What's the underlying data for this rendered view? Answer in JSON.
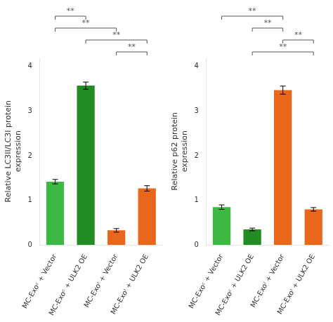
{
  "chart_data": [
    {
      "type": "bar",
      "ylabel": "Relative LC3II/LC3I protein\nexpression",
      "categories": [
        "MC-Exoᶜ + Vector",
        "MC-Exoᶜ + ULK2 OE",
        "MC-Exoᴵ + Vector",
        "MC-Exoᴵ + ULK2 OE"
      ],
      "values": [
        1.42,
        3.57,
        0.33,
        1.27
      ],
      "errors": [
        0.05,
        0.08,
        0.04,
        0.06
      ],
      "colors": [
        "#3cb843",
        "#228b22",
        "#e8671a",
        "#e8671a"
      ],
      "ylim": [
        0,
        4.2
      ],
      "yticks": [
        0,
        1,
        2,
        3,
        4
      ],
      "grid": false,
      "annotations": [
        {
          "text": "**",
          "from": "MC-Exoᶜ + Vector",
          "to": "MC-Exoᶜ + ULK2 OE"
        },
        {
          "text": "**",
          "from": "MC-Exoᶜ + Vector",
          "to": "MC-Exoᴵ + Vector"
        },
        {
          "text": "**",
          "from": "MC-Exoᶜ + ULK2 OE",
          "to": "MC-Exoᴵ + ULK2 OE"
        },
        {
          "text": "**",
          "from": "MC-Exoᴵ + Vector",
          "to": "MC-Exoᴵ + ULK2 OE"
        }
      ]
    },
    {
      "type": "bar",
      "ylabel": "Relative p62 protein\nexpression",
      "categories": [
        "MC-Exoᶜ + Vector",
        "MC-Exoᶜ + ULK2 OE",
        "MC-Exoᴵ + Vector",
        "MC-Exoᴵ + ULK2 OE"
      ],
      "values": [
        0.85,
        0.35,
        3.47,
        0.8
      ],
      "errors": [
        0.05,
        0.03,
        0.09,
        0.04
      ],
      "colors": [
        "#3cb843",
        "#228b22",
        "#e8671a",
        "#e8671a"
      ],
      "ylim": [
        0,
        4.2
      ],
      "yticks": [
        0,
        1,
        2,
        3,
        4
      ],
      "grid": false,
      "annotations": [
        {
          "text": "**",
          "from": "MC-Exoᶜ + Vector",
          "to": "MC-Exoᴵ + Vector"
        },
        {
          "text": "**",
          "from": "MC-Exoᶜ + ULK2 OE",
          "to": "MC-Exoᴵ + Vector"
        },
        {
          "text": "**",
          "from": "MC-Exoᴵ + Vector",
          "to": "MC-Exoᴵ + ULK2 OE"
        },
        {
          "text": "**",
          "from": "MC-Exoᶜ + ULK2 OE",
          "to": "MC-Exoᴵ + ULK2 OE"
        }
      ]
    }
  ]
}
